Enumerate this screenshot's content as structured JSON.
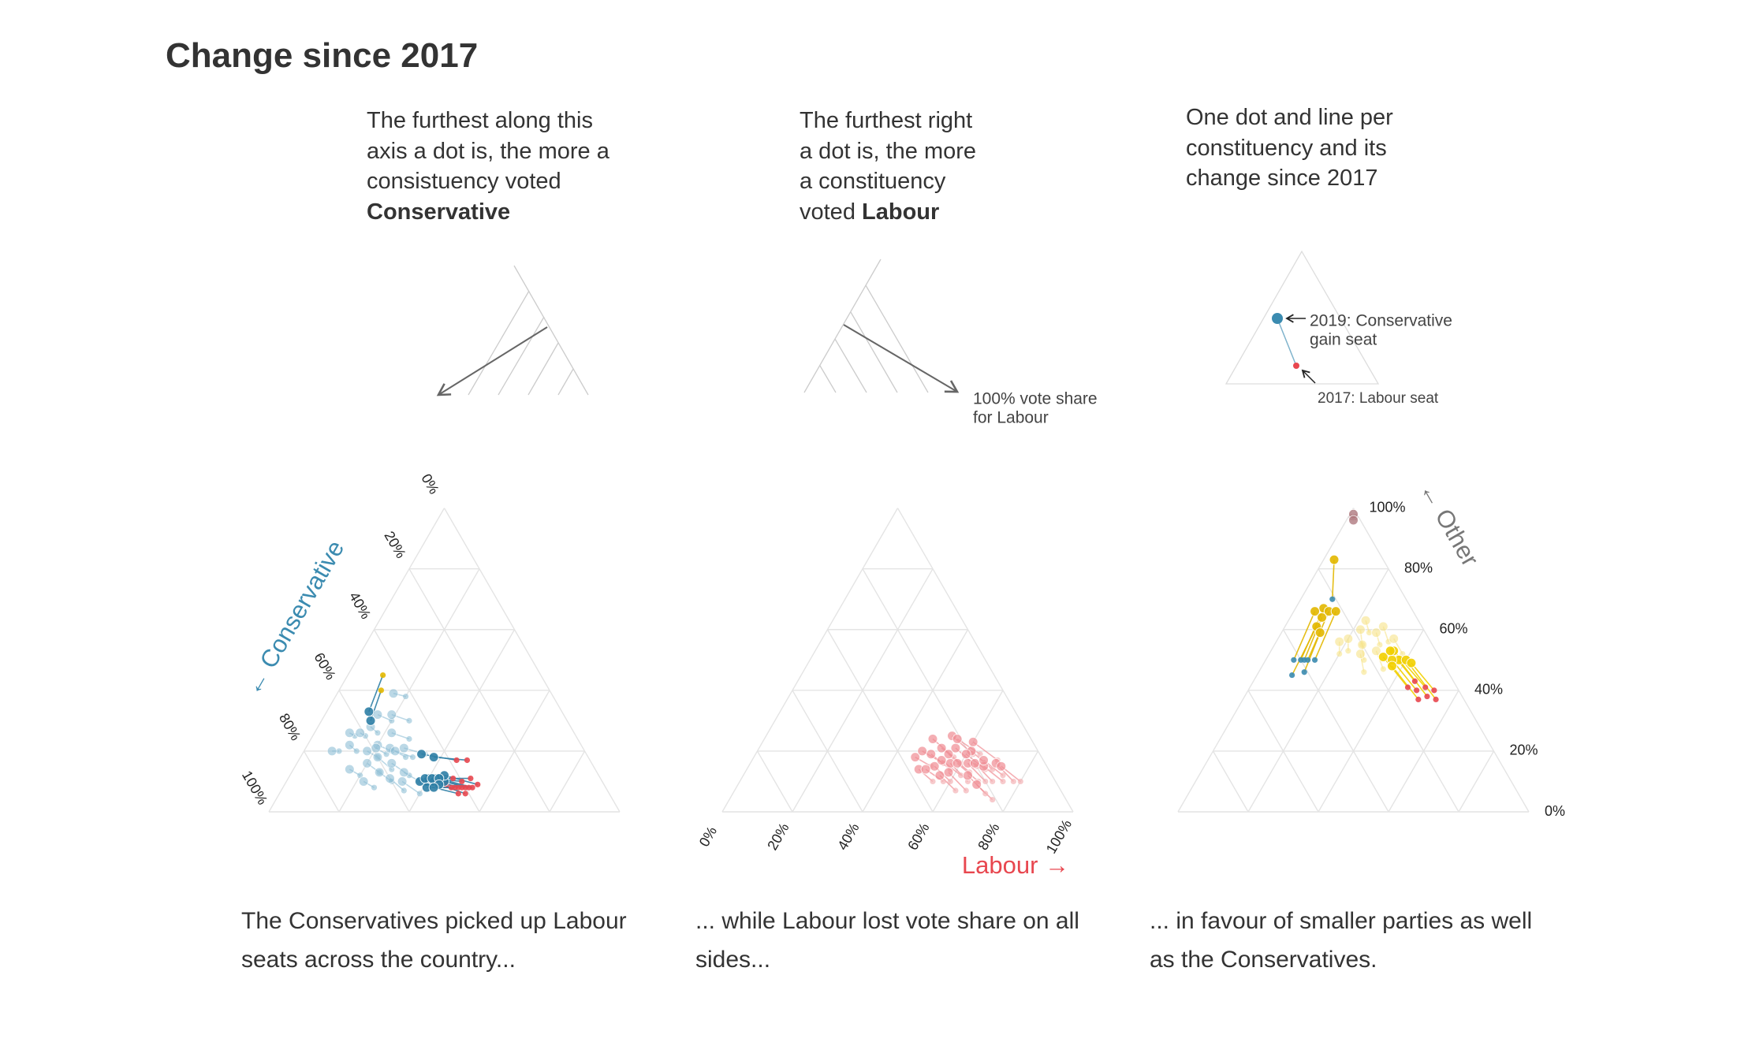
{
  "header": {
    "title": "Change since 2017"
  },
  "explainers": [
    {
      "lines": [
        "The furthest along this",
        "axis a dot is, the more a",
        "consistuency voted"
      ],
      "bold": "Conservative"
    },
    {
      "lines": [
        "The furthest right",
        "a dot is, the more",
        "a constituency",
        "voted"
      ],
      "bold": "Labour",
      "annotation": [
        "100% vote share",
        "for Labour"
      ]
    },
    {
      "lines": [
        "One dot and line per",
        "constituency and its",
        "change since 2017"
      ],
      "annotation_2019": [
        "2019: Conservative",
        "gain seat"
      ],
      "annotation_2017": "2017: Labour seat"
    }
  ],
  "captions": [
    [
      "The Conservatives picked up Labour",
      "seats across the country..."
    ],
    [
      "... while Labour lost vote share on all",
      "sides..."
    ],
    [
      "... in favour of smaller parties as well",
      "as the Conservatives."
    ]
  ],
  "chart_data": [
    {
      "type": "ternary",
      "axis": "con",
      "axis_label": "← Conservative",
      "axis_label_color": "#3b8bb0",
      "grid_color": "#e4e4e4",
      "ticks": [
        {
          "value": 0,
          "label": "0%"
        },
        {
          "value": 20,
          "label": "20%"
        },
        {
          "value": 40,
          "label": "40%"
        },
        {
          "value": 60,
          "label": "60%"
        },
        {
          "value": 80,
          "label": "80%"
        },
        {
          "value": 100,
          "label": "100%"
        }
      ],
      "groups": [
        {
          "color": "#8fbfd6",
          "end_color": "#8fbfd6",
          "opacity": 0.6,
          "points": [
            [
              55,
              25,
              58,
              20
            ],
            [
              60,
              22,
              62,
              18
            ],
            [
              52,
              30,
              55,
              24
            ],
            [
              65,
              15,
              66,
              12
            ],
            [
              58,
              28,
              60,
              22
            ],
            [
              50,
              20,
              53,
              15
            ],
            [
              62,
              25,
              64,
              20
            ],
            [
              56,
              18,
              57,
              15
            ],
            [
              48,
              28,
              52,
              22
            ],
            [
              54,
              34,
              57,
              27
            ],
            [
              68,
              20,
              70,
              16
            ],
            [
              45,
              25,
              49,
              19
            ],
            [
              60,
              30,
              62,
              25
            ],
            [
              52,
              38,
              55,
              32
            ],
            [
              58,
              35,
              60,
              29
            ],
            [
              70,
              10,
              72,
              8
            ],
            [
              63,
              12,
              64,
              10
            ],
            [
              50,
              32,
              54,
              26
            ],
            [
              46,
              35,
              51,
              28
            ],
            [
              57,
              24,
              59,
              20
            ],
            [
              66,
              26,
              68,
              22
            ],
            [
              42,
              20,
              45,
              16
            ],
            [
              60,
              15,
              61,
              13
            ],
            [
              54,
              40,
              57,
              33
            ]
          ]
        },
        {
          "color": "#2e7fa6",
          "end_color": "#e8474f",
          "opacity": 0.9,
          "points": [
            [
              42,
              50,
              49,
              40
            ],
            [
              40,
              52,
              47,
              42
            ],
            [
              44,
              48,
              50,
              40
            ],
            [
              38,
              54,
              46,
              43
            ],
            [
              43,
              49,
              51,
              41
            ],
            [
              41,
              51,
              48,
              42
            ],
            [
              39,
              53,
              45,
              45
            ],
            [
              45,
              46,
              52,
              38
            ],
            [
              36,
              55,
              44,
              44
            ],
            [
              42,
              47,
              50,
              39
            ],
            [
              40,
              50,
              48,
              41
            ],
            [
              37,
              52,
              46,
              43
            ],
            [
              35,
              48,
              44,
              38
            ],
            [
              38,
              45,
              47,
              34
            ],
            [
              41,
              53,
              47,
              44
            ],
            [
              43,
              51,
              49,
              43
            ]
          ]
        },
        {
          "color": "#2e7fa6",
          "end_color": "#e3b800",
          "opacity": 0.9,
          "points": [
            [
              48,
              12,
              56,
              14
            ],
            [
              45,
              10,
              55,
              12
            ]
          ]
        }
      ]
    },
    {
      "type": "ternary",
      "axis": "lab",
      "axis_label": "Labour →",
      "axis_label_color": "#e8474f",
      "grid_color": "#e4e4e4",
      "ticks": [
        {
          "value": 0,
          "label": "0%"
        },
        {
          "value": 20,
          "label": "20%"
        },
        {
          "value": 40,
          "label": "40%"
        },
        {
          "value": 60,
          "label": "60%"
        },
        {
          "value": 80,
          "label": "80%"
        },
        {
          "value": 100,
          "label": "100%"
        }
      ],
      "groups": [
        {
          "color": "#f08d94",
          "end_color": "#f4b3b7",
          "opacity": 0.7,
          "points": [
            [
              25,
              65,
              27,
              57
            ],
            [
              20,
              70,
              22,
              62
            ],
            [
              30,
              60,
              32,
              53
            ],
            [
              18,
              72,
              20,
              64
            ],
            [
              28,
              58,
              31,
              50
            ],
            [
              15,
              75,
              18,
              67
            ],
            [
              22,
              68,
              25,
              59
            ],
            [
              35,
              55,
              37,
              49
            ],
            [
              12,
              78,
              14,
              70
            ],
            [
              26,
              62,
              29,
              54
            ],
            [
              20,
              65,
              23,
              56
            ],
            [
              32,
              58,
              35,
              51
            ],
            [
              16,
              70,
              19,
              61
            ],
            [
              24,
              60,
              27,
              52
            ],
            [
              14,
              74,
              17,
              66
            ],
            [
              30,
              63,
              32,
              56
            ],
            [
              22,
              72,
              24,
              64
            ],
            [
              19,
              62,
              22,
              53
            ],
            [
              27,
              66,
              29,
              58
            ],
            [
              10,
              80,
              13,
              72
            ],
            [
              33,
              52,
              36,
              46
            ],
            [
              18,
              68,
              21,
              60
            ],
            [
              25,
              57,
              28,
              48
            ],
            [
              13,
              70,
              17,
              60
            ],
            [
              21,
              75,
              23,
              68
            ],
            [
              29,
              55,
              33,
              47
            ],
            [
              17,
              64,
              21,
              55
            ],
            [
              23,
              64,
              26,
              55
            ]
          ]
        }
      ]
    },
    {
      "type": "ternary",
      "axis": "other",
      "axis_label": "← Other",
      "axis_label_color": "#777777",
      "grid_color": "#e4e4e4",
      "ticks": [
        {
          "value": 0,
          "label": "0%"
        },
        {
          "value": 20,
          "label": "20%"
        },
        {
          "value": 40,
          "label": "40%"
        },
        {
          "value": 60,
          "label": "60%"
        },
        {
          "value": 80,
          "label": "80%"
        },
        {
          "value": 100,
          "label": "100%"
        }
      ],
      "groups": [
        {
          "color": "#f7e48a",
          "end_color": "#f7e48a",
          "opacity": 0.6,
          "points": [
            [
              20,
              25,
              18,
              22
            ],
            [
              15,
              30,
              14,
              27
            ],
            [
              25,
              22,
              23,
              20
            ],
            [
              18,
              35,
              17,
              30
            ],
            [
              22,
              28,
              20,
              25
            ],
            [
              12,
              32,
              11,
              28
            ],
            [
              28,
              20,
              26,
              18
            ],
            [
              16,
              25,
              15,
              22
            ],
            [
              10,
              38,
              10,
              33
            ],
            [
              24,
              30,
              22,
              26
            ]
          ]
        },
        {
          "color": "#e3b800",
          "end_color": "#3b8bb0",
          "opacity": 0.9,
          "points": [
            [
              40,
              10,
              25,
              8
            ],
            [
              38,
              12,
              24,
              10
            ],
            [
              42,
              8,
              28,
              6
            ],
            [
              36,
              14,
              22,
              12
            ],
            [
              39,
              11,
              27,
              9
            ],
            [
              21,
              9,
              14,
              3
            ],
            [
              45,
              10,
              30,
              9
            ],
            [
              41,
              13,
              30,
              11
            ]
          ]
        },
        {
          "color": "#f2d000",
          "end_color": "#e8474f",
          "opacity": 0.9,
          "points": [
            [
              10,
              52,
              12,
              38
            ],
            [
              12,
              48,
              14,
              36
            ],
            [
              8,
              55,
              10,
              40
            ],
            [
              14,
              45,
              16,
              33
            ],
            [
              9,
              50,
              12,
              35
            ],
            [
              11,
              46,
              13,
              34
            ],
            [
              7,
              53,
              9,
              42
            ],
            [
              13,
              50,
              15,
              37
            ]
          ]
        },
        {
          "color": "#b07a80",
          "end_color": "#b07a80",
          "opacity": 0.8,
          "points": [
            [
              1,
              2,
              1,
              1
            ],
            [
              2,
              1,
              2,
              2
            ]
          ]
        }
      ]
    }
  ]
}
